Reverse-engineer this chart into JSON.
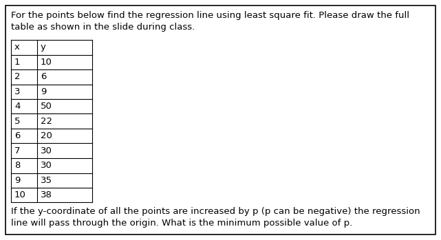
{
  "title_text": "For the points below find the regression line using least square fit. Please draw the full\ntable as shown in the slide during class.",
  "footer_text": "If the y-coordinate of all the points are increased by p (p can be negative) the regression\nline will pass through the origin. What is the minimum possible value of p.",
  "col_headers": [
    "x",
    "y"
  ],
  "rows": [
    [
      1,
      10
    ],
    [
      2,
      6
    ],
    [
      3,
      9
    ],
    [
      4,
      50
    ],
    [
      5,
      22
    ],
    [
      6,
      20
    ],
    [
      7,
      30
    ],
    [
      8,
      30
    ],
    [
      9,
      35
    ],
    [
      10,
      38
    ]
  ],
  "bg_color": "#ffffff",
  "border_color": "#000000",
  "font_size": 9.5,
  "fig_width": 6.41,
  "fig_height": 3.49,
  "dpi": 100
}
